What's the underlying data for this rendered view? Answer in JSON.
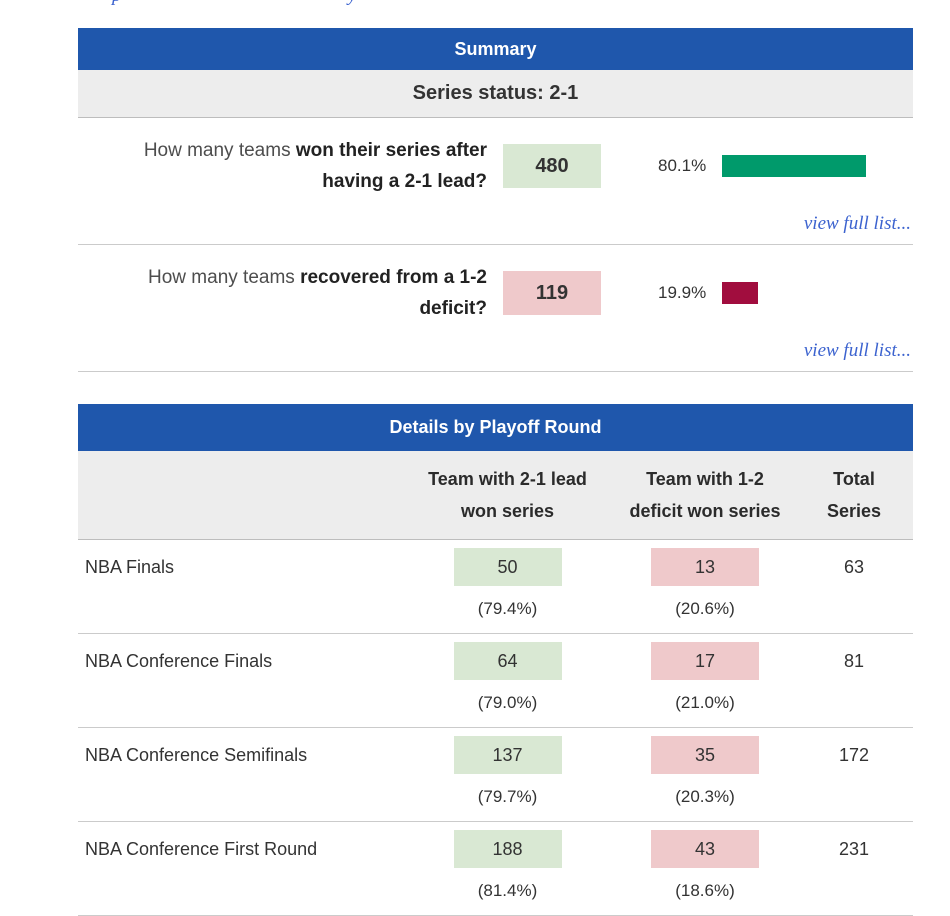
{
  "page": {
    "top_fragments": [
      {
        "glyph": "p"
      },
      {
        "glyph": "y"
      }
    ]
  },
  "colors": {
    "header_blue": "#1F57AC",
    "panel_gray": "#EDEDED",
    "green_box": "#D9E8D3",
    "pink_box": "#EFC9CB",
    "green_bar": "#009A6B",
    "maroon_bar": "#A10D3E",
    "link_blue": "#3C63CF"
  },
  "summary": {
    "title": "Summary",
    "series_status": "Series status: 2-1",
    "rows": [
      {
        "question_prefix": "How many teams",
        "question_bold": "won their series after having a 2-1 lead?",
        "count": "480",
        "pct_label": "80.1%",
        "pct_value": 80.1,
        "link": "view full list..."
      },
      {
        "question_prefix": "How many teams",
        "question_bold": "recovered from a 1-2 deficit?",
        "count": "119",
        "pct_label": "19.9%",
        "pct_value": 19.9,
        "link": "view full list..."
      }
    ]
  },
  "details": {
    "title": "Details by Playoff Round",
    "col_headers": {
      "lead_line1": "Team with 2-1 lead",
      "lead_line2": "won series",
      "deficit_line1": "Team with 1-2",
      "deficit_line2": "deficit won series",
      "total_line1": "Total",
      "total_line2": "Series"
    },
    "rows": [
      {
        "round": "NBA Finals",
        "lead_won": "50",
        "lead_pct": "(79.4%)",
        "deficit_won": "13",
        "deficit_pct": "(20.6%)",
        "total": "63"
      },
      {
        "round": "NBA Conference Finals",
        "lead_won": "64",
        "lead_pct": "(79.0%)",
        "deficit_won": "17",
        "deficit_pct": "(21.0%)",
        "total": "81"
      },
      {
        "round": "NBA Conference Semifinals",
        "lead_won": "137",
        "lead_pct": "(79.7%)",
        "deficit_won": "35",
        "deficit_pct": "(20.3%)",
        "total": "172"
      },
      {
        "round": "NBA Conference First Round",
        "lead_won": "188",
        "lead_pct": "(81.4%)",
        "deficit_won": "43",
        "deficit_pct": "(18.6%)",
        "total": "231"
      }
    ]
  }
}
